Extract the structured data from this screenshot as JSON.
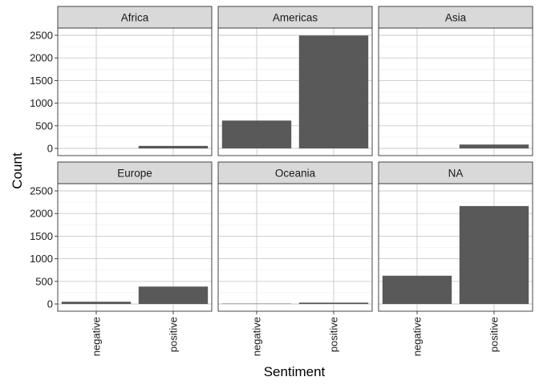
{
  "chart_data": {
    "type": "bar",
    "layout": "facet_wrap",
    "facet_columns": 3,
    "xlabel": "Sentiment",
    "ylabel": "Count",
    "categories": [
      "negative",
      "positive"
    ],
    "ylim": [
      0,
      2500
    ],
    "y_ticks": [
      0,
      500,
      1000,
      1500,
      2000,
      2500
    ],
    "grid": true,
    "bar_color": "#595959",
    "facets": [
      {
        "name": "Africa",
        "values": [
          0,
          55
        ]
      },
      {
        "name": "Americas",
        "values": [
          615,
          2495
        ]
      },
      {
        "name": "Asia",
        "values": [
          0,
          85
        ]
      },
      {
        "name": "Europe",
        "values": [
          50,
          385
        ]
      },
      {
        "name": "Oceania",
        "values": [
          8,
          30
        ]
      },
      {
        "name": "NA",
        "values": [
          625,
          2165
        ]
      }
    ]
  }
}
